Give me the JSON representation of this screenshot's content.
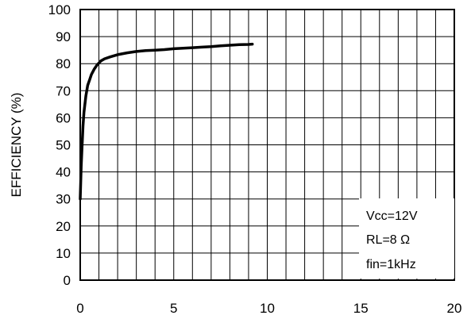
{
  "chart_data": {
    "type": "line",
    "title": "",
    "xlabel": "",
    "ylabel": "EFFICIENCY (%)",
    "xlim": [
      0,
      20
    ],
    "ylim": [
      0,
      100
    ],
    "x_ticks": [
      "0",
      "5",
      "10",
      "15",
      "20"
    ],
    "y_ticks": [
      "0",
      "10",
      "20",
      "30",
      "40",
      "50",
      "60",
      "70",
      "80",
      "90",
      "100"
    ],
    "grid": true,
    "series": [
      {
        "x": [
          0.0,
          0.05,
          0.1,
          0.15,
          0.2,
          0.3,
          0.4,
          0.5,
          0.6,
          0.75,
          0.9,
          1.1,
          1.3,
          1.6,
          2.0,
          2.5,
          3.0,
          3.5,
          4.0,
          4.5,
          5.0,
          5.5,
          6.0,
          6.5,
          7.0,
          7.5,
          8.0,
          8.5,
          9.0,
          9.2
        ],
        "y": [
          30,
          42,
          50,
          57,
          62,
          68,
          72,
          74,
          76,
          78,
          79.5,
          81,
          81.8,
          82.5,
          83.3,
          84,
          84.5,
          84.8,
          85,
          85.2,
          85.5,
          85.7,
          85.9,
          86.1,
          86.3,
          86.6,
          86.8,
          87,
          87.1,
          87.2
        ]
      }
    ],
    "annotations": [
      "Vcc=12V",
      "RL=8 Ω",
      "fin=1kHz"
    ],
    "colors": {
      "line": "#000000",
      "grid": "#000000",
      "background": "#ffffff"
    }
  }
}
